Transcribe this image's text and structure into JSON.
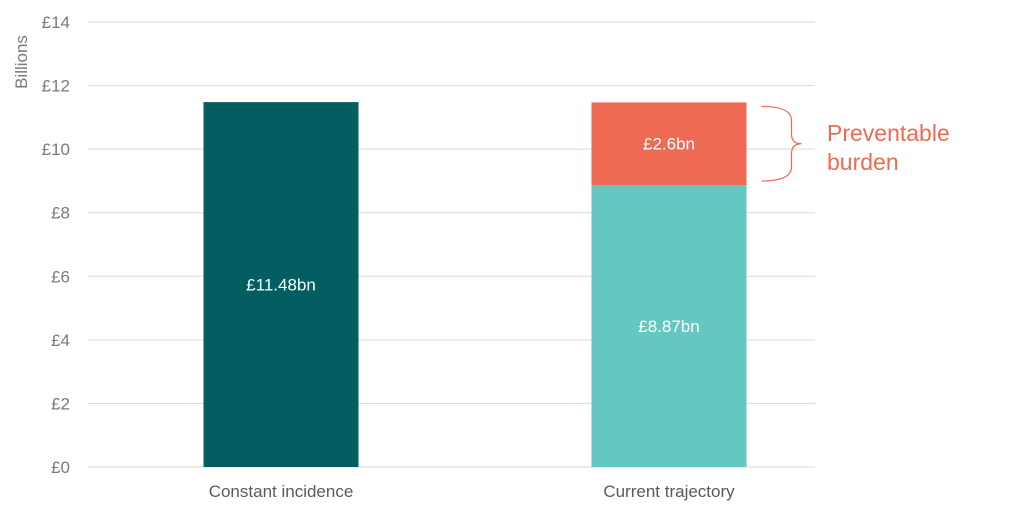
{
  "chart_data": {
    "type": "bar",
    "stacked": true,
    "ylabel": "Billions",
    "ylim": [
      0,
      14
    ],
    "yticks": [
      "£0",
      "£2",
      "£4",
      "£6",
      "£8",
      "£10",
      "£12",
      "£14"
    ],
    "grid": true,
    "categories": [
      "Constant incidence",
      "Current trajectory"
    ],
    "series": [
      {
        "key": "base",
        "values": [
          11.48,
          8.87
        ],
        "colors": [
          "#025e61",
          "#64c7c1"
        ],
        "labels": [
          "£11.48bn",
          "£8.87bn"
        ]
      },
      {
        "key": "preventable",
        "values": [
          0,
          2.6
        ],
        "colors": [
          "#ee6a52",
          "#ee6a52"
        ],
        "labels": [
          "",
          "£2.6bn"
        ]
      }
    ],
    "annotation": {
      "lines": [
        "Preventable",
        "burden"
      ],
      "color": "#ee6a52",
      "applies_to_category": "Current trajectory"
    }
  }
}
